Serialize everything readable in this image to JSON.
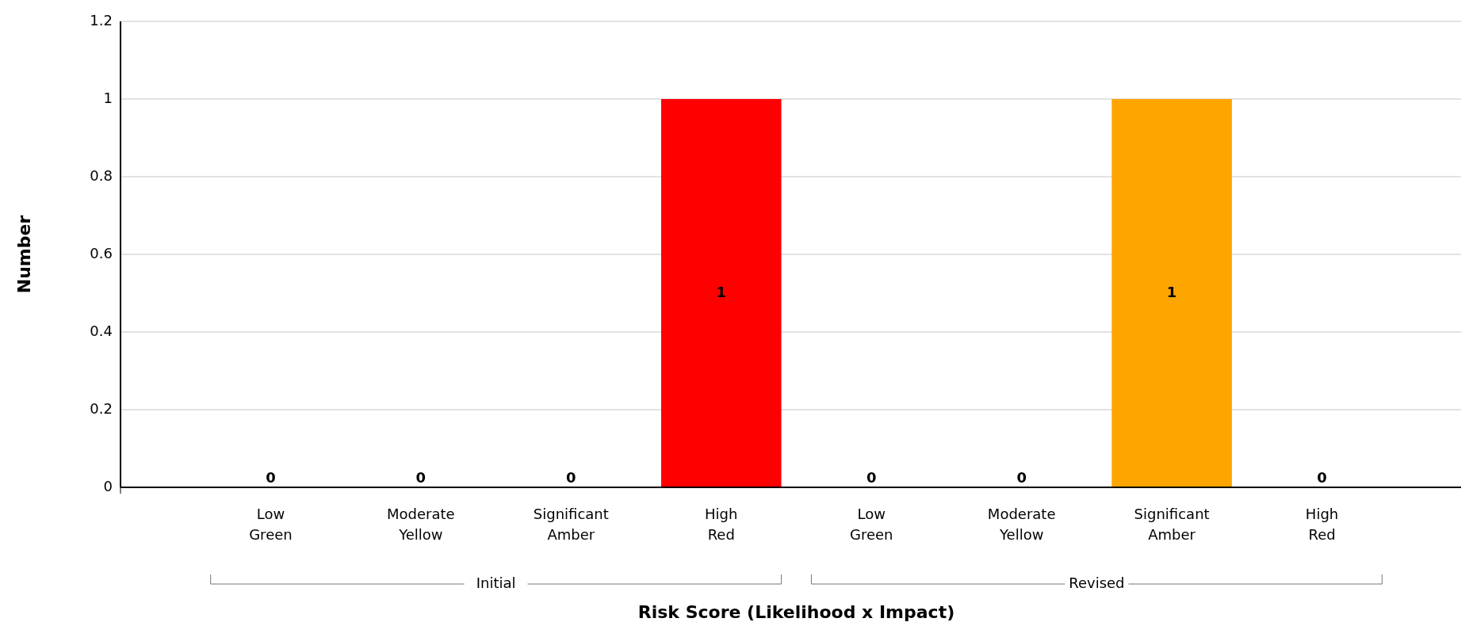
{
  "chart_data": {
    "type": "bar",
    "xlabel": "Risk Score (Likelihood x Impact)",
    "ylabel": "Number",
    "categories": [
      "Low Green",
      "Moderate Yellow",
      "Significant Amber",
      "High Red",
      "Low Green",
      "Moderate Yellow",
      "Significant Amber",
      "High Red"
    ],
    "values": [
      0,
      0,
      0,
      1,
      0,
      0,
      1,
      0
    ],
    "colors": [
      "#00b050",
      "#ffff00",
      "#ffa500",
      "#ff0000",
      "#00b050",
      "#ffff00",
      "#ffa500",
      "#ff0000"
    ],
    "ylim": [
      0,
      1.2
    ],
    "yticks": [
      0,
      0.2,
      0.4,
      0.6,
      0.8,
      1,
      1.2
    ],
    "grid": "y",
    "data_labels": true,
    "annotations": [
      "Initial",
      "Revised"
    ]
  }
}
